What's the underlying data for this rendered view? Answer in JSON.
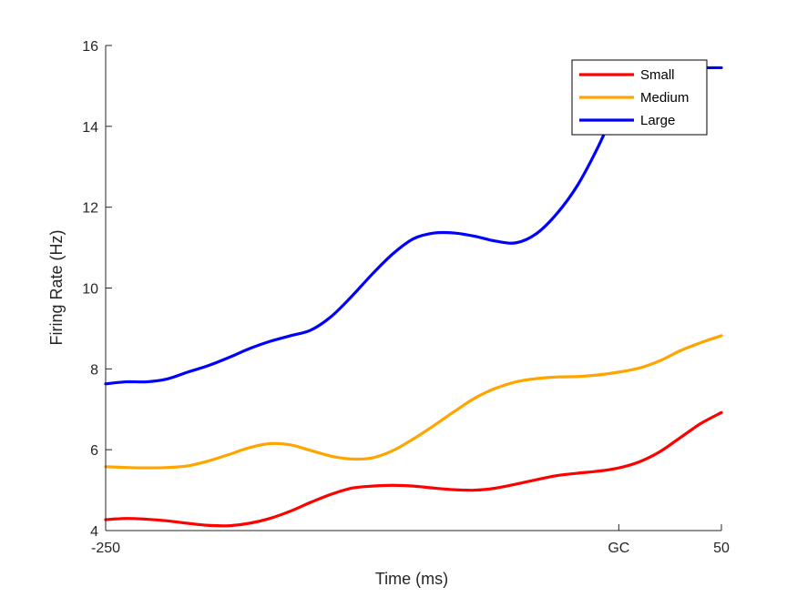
{
  "chart_data": {
    "type": "line",
    "xlabel": "Time (ms)",
    "ylabel": "Firing Rate (Hz)",
    "xlim": [
      -250,
      50
    ],
    "ylim": [
      4,
      16
    ],
    "x_ticks": [
      {
        "value": -250,
        "label": "-250"
      },
      {
        "value": 0,
        "label": "GC"
      },
      {
        "value": 50,
        "label": "50"
      }
    ],
    "y_ticks": [
      {
        "value": 4,
        "label": "4"
      },
      {
        "value": 6,
        "label": "6"
      },
      {
        "value": 8,
        "label": "8"
      },
      {
        "value": 10,
        "label": "10"
      },
      {
        "value": 12,
        "label": "12"
      },
      {
        "value": 14,
        "label": "14"
      },
      {
        "value": 16,
        "label": "16"
      }
    ],
    "grid": false,
    "legend_position": "top-right",
    "series": [
      {
        "name": "Small",
        "color": "#ff0000",
        "x": [
          -250,
          -240,
          -230,
          -220,
          -210,
          -200,
          -190,
          -180,
          -170,
          -160,
          -150,
          -140,
          -130,
          -120,
          -110,
          -100,
          -90,
          -80,
          -70,
          -60,
          -50,
          -40,
          -30,
          -20,
          -10,
          0,
          10,
          20,
          30,
          40,
          50
        ],
        "y": [
          4.27,
          4.3,
          4.28,
          4.24,
          4.18,
          4.13,
          4.12,
          4.18,
          4.3,
          4.48,
          4.7,
          4.9,
          5.05,
          5.1,
          5.12,
          5.1,
          5.05,
          5.01,
          5.0,
          5.05,
          5.15,
          5.26,
          5.36,
          5.42,
          5.47,
          5.55,
          5.7,
          5.95,
          6.3,
          6.65,
          6.92
        ]
      },
      {
        "name": "Medium",
        "color": "#ffa500",
        "x": [
          -250,
          -240,
          -230,
          -220,
          -210,
          -200,
          -190,
          -180,
          -170,
          -160,
          -150,
          -140,
          -130,
          -120,
          -110,
          -100,
          -90,
          -80,
          -70,
          -60,
          -50,
          -40,
          -30,
          -20,
          -10,
          0,
          10,
          20,
          30,
          40,
          50
        ],
        "y": [
          5.58,
          5.56,
          5.55,
          5.56,
          5.6,
          5.72,
          5.88,
          6.05,
          6.15,
          6.12,
          5.98,
          5.84,
          5.77,
          5.8,
          5.98,
          6.27,
          6.6,
          6.95,
          7.28,
          7.52,
          7.68,
          7.76,
          7.8,
          7.81,
          7.85,
          7.92,
          8.02,
          8.2,
          8.45,
          8.65,
          8.82
        ]
      },
      {
        "name": "Large",
        "color": "#0000ff",
        "x": [
          -250,
          -240,
          -230,
          -220,
          -210,
          -200,
          -190,
          -180,
          -170,
          -160,
          -150,
          -140,
          -130,
          -120,
          -110,
          -100,
          -90,
          -80,
          -70,
          -60,
          -50,
          -40,
          -30,
          -20,
          -10,
          0,
          10,
          20,
          30,
          40,
          50
        ],
        "y": [
          7.63,
          7.68,
          7.68,
          7.75,
          7.92,
          8.08,
          8.28,
          8.5,
          8.68,
          8.82,
          8.96,
          9.3,
          9.8,
          10.35,
          10.85,
          11.22,
          11.36,
          11.36,
          11.28,
          11.16,
          11.12,
          11.35,
          11.85,
          12.55,
          13.5,
          14.6,
          15.45,
          15.45,
          15.45,
          15.45,
          15.45
        ]
      }
    ]
  }
}
